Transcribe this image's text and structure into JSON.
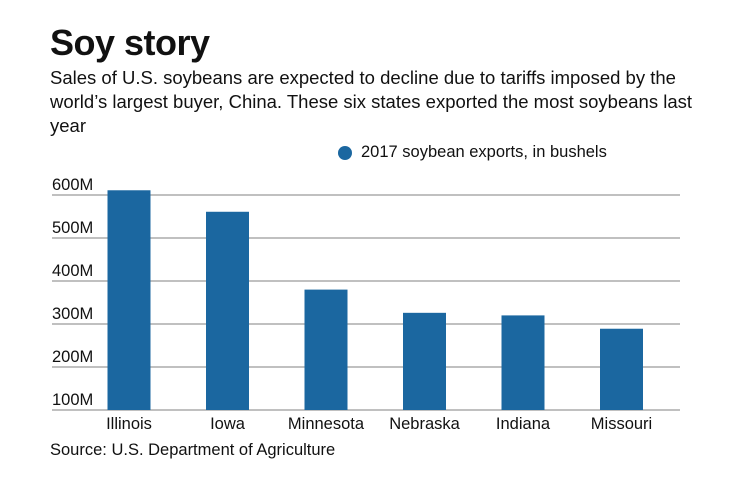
{
  "title": "Soy story",
  "subtitle": "Sales of U.S. soybeans are expected to decline due to tariffs imposed by the world’s largest buyer, China. These six states exported the most soybeans last year",
  "source": "Source: U.S. Department of Agriculture",
  "colors": {
    "bar": "#1b67a0",
    "grid": "#9a9a9a"
  },
  "chart_data": {
    "type": "bar",
    "title": "Soy story",
    "categories": [
      "Illinois",
      "Iowa",
      "Minnesota",
      "Nebraska",
      "Indiana",
      "Missouri"
    ],
    "series": [
      {
        "name": "2017 soybean exports, in bushels",
        "values": [
          611,
          561,
          380,
          326,
          320,
          289
        ]
      }
    ],
    "unit": "M bushels",
    "yticks": [
      100,
      200,
      300,
      400,
      500,
      600
    ],
    "ytick_labels": [
      "100M",
      "200M",
      "300M",
      "400M",
      "500M",
      "600M"
    ],
    "ylim": [
      100,
      630
    ],
    "grid": true,
    "legend_position": "top-right"
  }
}
